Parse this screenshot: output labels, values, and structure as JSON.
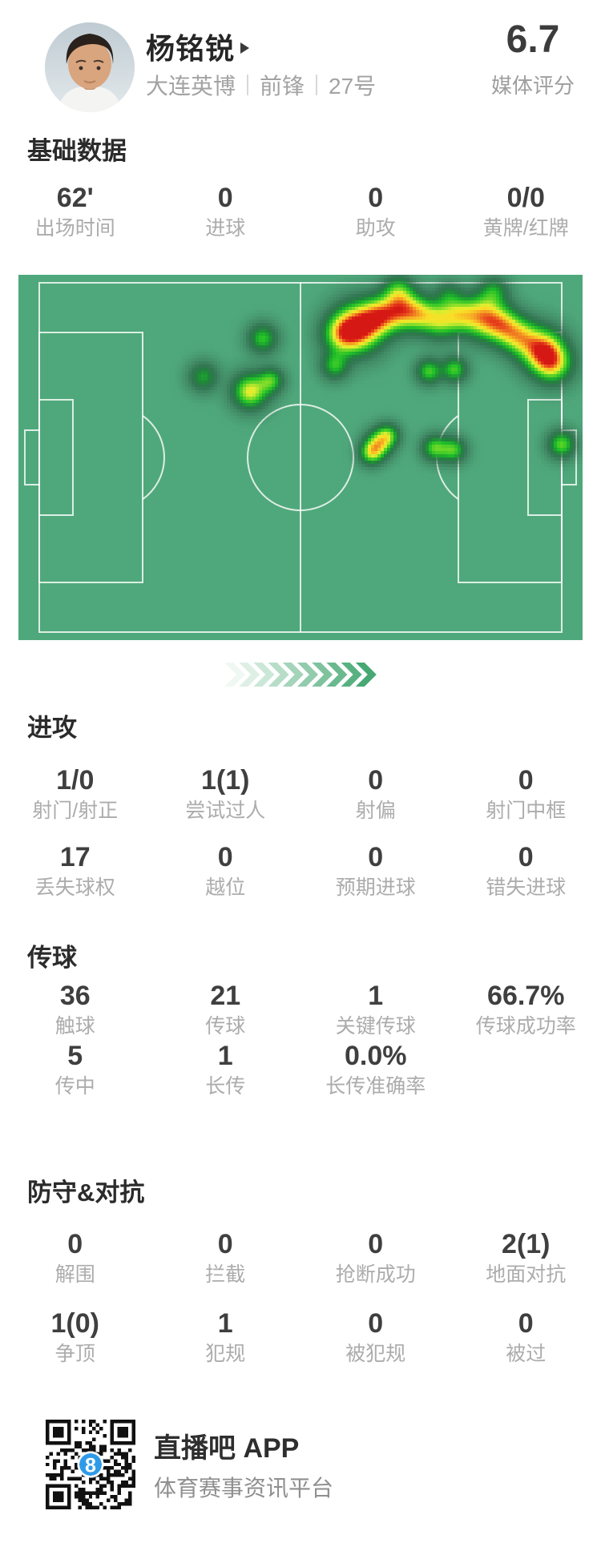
{
  "player": {
    "name": "杨铭锐",
    "team": "大连英博",
    "position": "前锋",
    "shirt_number": "27号",
    "rating": "6.7",
    "rating_label": "媒体评分"
  },
  "stats": {
    "basic": {
      "title": "基础数据",
      "rows": [
        [
          {
            "v": "62'",
            "l": "出场时间"
          },
          {
            "v": "0",
            "l": "进球"
          },
          {
            "v": "0",
            "l": "助攻"
          },
          {
            "v": "0/0",
            "l": "黄牌/红牌"
          }
        ]
      ]
    },
    "attack": {
      "title": "进攻",
      "rows": [
        [
          {
            "v": "1/0",
            "l": "射门/射正"
          },
          {
            "v": "1(1)",
            "l": "尝试过人"
          },
          {
            "v": "0",
            "l": "射偏"
          },
          {
            "v": "0",
            "l": "射门中框"
          }
        ],
        [
          {
            "v": "17",
            "l": "丢失球权"
          },
          {
            "v": "0",
            "l": "越位"
          },
          {
            "v": "0",
            "l": "预期进球"
          },
          {
            "v": "0",
            "l": "错失进球"
          }
        ]
      ]
    },
    "passing": {
      "title": "传球",
      "rows": [
        [
          {
            "v": "36",
            "l": "触球"
          },
          {
            "v": "21",
            "l": "传球"
          },
          {
            "v": "1",
            "l": "关键传球"
          },
          {
            "v": "66.7%",
            "l": "传球成功率"
          }
        ],
        [
          {
            "v": "5",
            "l": "传中"
          },
          {
            "v": "1",
            "l": "长传"
          },
          {
            "v": "0.0%",
            "l": "长传准确率"
          }
        ]
      ]
    },
    "defense": {
      "title": "防守&对抗",
      "rows": [
        [
          {
            "v": "0",
            "l": "解围"
          },
          {
            "v": "0",
            "l": "拦截"
          },
          {
            "v": "0",
            "l": "抢断成功"
          },
          {
            "v": "2(1)",
            "l": "地面对抗"
          }
        ],
        [
          {
            "v": "1(0)",
            "l": "争顶"
          },
          {
            "v": "1",
            "l": "犯规"
          },
          {
            "v": "0",
            "l": "被犯规"
          },
          {
            "v": "0",
            "l": "被过"
          }
        ]
      ]
    }
  },
  "heatmap": {
    "pitch_color": "#4fa87b",
    "line_color": "rgba(255,255,255,0.8)",
    "points": [
      {
        "x": 60.0,
        "y": 14.0,
        "v": 0.95,
        "r": 50
      },
      {
        "x": 63.5,
        "y": 11.0,
        "v": 0.55,
        "r": 38
      },
      {
        "x": 67.5,
        "y": 9.0,
        "v": 0.78,
        "r": 42
      },
      {
        "x": 71.0,
        "y": 10.5,
        "v": 0.42,
        "r": 34
      },
      {
        "x": 74.5,
        "y": 12.0,
        "v": 0.55,
        "r": 38
      },
      {
        "x": 78.0,
        "y": 10.5,
        "v": 0.42,
        "r": 34
      },
      {
        "x": 82.0,
        "y": 11.0,
        "v": 0.72,
        "r": 44
      },
      {
        "x": 85.5,
        "y": 13.5,
        "v": 0.55,
        "r": 38
      },
      {
        "x": 88.5,
        "y": 16.5,
        "v": 0.55,
        "r": 38
      },
      {
        "x": 92.5,
        "y": 20.0,
        "v": 0.82,
        "r": 44
      },
      {
        "x": 94.5,
        "y": 24.0,
        "v": 0.6,
        "r": 40
      },
      {
        "x": 57.0,
        "y": 16.0,
        "v": 0.5,
        "r": 40
      },
      {
        "x": 67.0,
        "y": 3.5,
        "v": 0.3,
        "r": 30
      },
      {
        "x": 84.0,
        "y": 4.0,
        "v": 0.32,
        "r": 30
      },
      {
        "x": 76.0,
        "y": 5.0,
        "v": 0.25,
        "r": 28
      },
      {
        "x": 43.0,
        "y": 17.0,
        "v": 0.45,
        "r": 30
      },
      {
        "x": 32.5,
        "y": 27.5,
        "v": 0.36,
        "r": 30
      },
      {
        "x": 40.8,
        "y": 31.5,
        "v": 0.68,
        "r": 36
      },
      {
        "x": 44.5,
        "y": 28.5,
        "v": 0.45,
        "r": 26
      },
      {
        "x": 55.8,
        "y": 24.5,
        "v": 0.42,
        "r": 28
      },
      {
        "x": 72.5,
        "y": 26.0,
        "v": 0.48,
        "r": 26
      },
      {
        "x": 77.0,
        "y": 25.5,
        "v": 0.48,
        "r": 26
      },
      {
        "x": 63.5,
        "y": 46.0,
        "v": 0.58,
        "r": 28
      },
      {
        "x": 62.2,
        "y": 48.5,
        "v": 0.48,
        "r": 24
      },
      {
        "x": 65.2,
        "y": 43.5,
        "v": 0.48,
        "r": 24
      },
      {
        "x": 73.5,
        "y": 47.0,
        "v": 0.5,
        "r": 26
      },
      {
        "x": 76.8,
        "y": 47.5,
        "v": 0.48,
        "r": 26
      },
      {
        "x": 96.0,
        "y": 46.0,
        "v": 0.52,
        "r": 28
      }
    ]
  },
  "chevrons": {
    "count": 10,
    "color": "#46a873"
  },
  "footer": {
    "app_name": "直播吧 APP",
    "tagline": "体育赛事资讯平台",
    "qr_logo_text": "8"
  }
}
